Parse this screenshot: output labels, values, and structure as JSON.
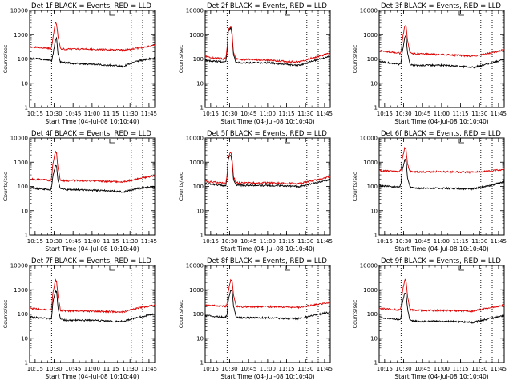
{
  "chart_data": [
    {
      "type": "line",
      "title": "Det 1f BLACK = Events, RED = LLD",
      "xlabel": "Start Time (04-Jul-08 10:10:40)",
      "ylabel": "Counts/sec",
      "xlim": [
        "10:10:40",
        "11:49:30"
      ],
      "ylim": [
        1,
        10000
      ],
      "log_y": true,
      "xticks": [
        "10:15",
        "10:30",
        "10:45",
        "11:00",
        "11:15",
        "11:30",
        "11:45"
      ],
      "yticks": [
        "1",
        "10",
        "100",
        "1000",
        "10000"
      ],
      "vlines": [
        "10:28",
        "11:31",
        "11:40"
      ],
      "series": [
        {
          "color": "#000000",
          "x": [
            "10:10:40",
            "10:18",
            "10:25",
            "10:27",
            "10:28",
            "10:29",
            "10:31",
            "10:32",
            "10:33",
            "10:35",
            "10:40",
            "10:45",
            "11:00",
            "11:15",
            "11:25",
            "11:35",
            "11:49"
          ],
          "values": [
            105,
            100,
            95,
            85,
            85,
            140,
            600,
            700,
            170,
            75,
            70,
            65,
            60,
            55,
            50,
            80,
            110
          ]
        },
        {
          "color": "#dd0000",
          "x": [
            "10:10:40",
            "10:18",
            "10:25",
            "10:27",
            "10:28",
            "10:29",
            "10:31",
            "10:32",
            "10:33",
            "10:35",
            "10:40",
            "10:45",
            "11:00",
            "11:15",
            "11:25",
            "11:35",
            "11:49"
          ],
          "values": [
            320,
            300,
            280,
            270,
            300,
            700,
            3200,
            2600,
            900,
            270,
            250,
            260,
            250,
            240,
            230,
            270,
            360
          ]
        }
      ]
    },
    {
      "type": "line",
      "title": "Det 2f BLACK = Events, RED = LLD",
      "xlabel": "Start Time (04-Jul-08 10:10:40)",
      "ylabel": "Counts/sec",
      "xlim": [
        "10:10:40",
        "11:49:30"
      ],
      "ylim": [
        1,
        10000
      ],
      "log_y": true,
      "xticks": [
        "10:15",
        "10:30",
        "10:45",
        "11:00",
        "11:15",
        "11:30",
        "11:45"
      ],
      "yticks": [
        "1",
        "10",
        "100",
        "1000",
        "10000"
      ],
      "vlines": [
        "10:28",
        "11:31",
        "11:40"
      ],
      "series": [
        {
          "color": "#000000",
          "x": [
            "10:10:40",
            "10:18",
            "10:25",
            "10:27",
            "10:28",
            "10:29",
            "10:31",
            "10:32",
            "10:33",
            "10:35",
            "10:40",
            "10:45",
            "11:00",
            "11:15",
            "11:25",
            "11:35",
            "11:49"
          ],
          "values": [
            90,
            80,
            75,
            80,
            200,
            1500,
            1900,
            900,
            150,
            75,
            70,
            70,
            70,
            60,
            55,
            80,
            130
          ]
        },
        {
          "color": "#dd0000",
          "x": [
            "10:10:40",
            "10:18",
            "10:25",
            "10:27",
            "10:28",
            "10:29",
            "10:31",
            "10:32",
            "10:33",
            "10:35",
            "10:40",
            "10:45",
            "11:00",
            "11:15",
            "11:25",
            "11:35",
            "11:49"
          ],
          "values": [
            130,
            110,
            100,
            110,
            300,
            1800,
            2200,
            1100,
            190,
            100,
            95,
            95,
            90,
            80,
            75,
            110,
            170
          ]
        }
      ]
    },
    {
      "type": "line",
      "title": "Det 3f BLACK = Events, RED = LLD",
      "xlabel": "Start Time (04-Jul-08 10:10:40)",
      "ylabel": "Counts/sec",
      "xlim": [
        "10:10:40",
        "11:49:30"
      ],
      "ylim": [
        1,
        10000
      ],
      "log_y": true,
      "xticks": [
        "10:15",
        "10:30",
        "10:45",
        "11:00",
        "11:15",
        "11:30",
        "11:45"
      ],
      "yticks": [
        "1",
        "10",
        "100",
        "1000",
        "10000"
      ],
      "vlines": [
        "10:28",
        "11:31",
        "11:40"
      ],
      "series": [
        {
          "color": "#000000",
          "x": [
            "10:10:40",
            "10:18",
            "10:25",
            "10:27",
            "10:28",
            "10:29",
            "10:31",
            "10:32",
            "10:33",
            "10:35",
            "10:40",
            "10:45",
            "11:00",
            "11:15",
            "11:25",
            "11:35",
            "11:49"
          ],
          "values": [
            80,
            70,
            65,
            60,
            70,
            200,
            800,
            850,
            200,
            60,
            55,
            55,
            55,
            50,
            45,
            60,
            95
          ]
        },
        {
          "color": "#dd0000",
          "x": [
            "10:10:40",
            "10:18",
            "10:25",
            "10:27",
            "10:28",
            "10:29",
            "10:31",
            "10:32",
            "10:33",
            "10:35",
            "10:40",
            "10:45",
            "11:00",
            "11:15",
            "11:25",
            "11:35",
            "11:49"
          ],
          "values": [
            220,
            200,
            180,
            170,
            200,
            600,
            2500,
            2200,
            600,
            180,
            160,
            160,
            150,
            140,
            130,
            160,
            240
          ]
        }
      ]
    },
    {
      "type": "line",
      "title": "Det 4f BLACK = Events, RED = LLD",
      "xlabel": "Start Time (04-Jul-08 10:10:40)",
      "ylabel": "Counts/sec",
      "xlim": [
        "10:10:40",
        "11:49:30"
      ],
      "ylim": [
        1,
        10000
      ],
      "log_y": true,
      "xticks": [
        "10:15",
        "10:30",
        "10:45",
        "11:00",
        "11:15",
        "11:30",
        "11:45"
      ],
      "yticks": [
        "1",
        "10",
        "100",
        "1000",
        "10000"
      ],
      "vlines": [
        "10:28",
        "11:31",
        "11:40"
      ],
      "series": [
        {
          "color": "#000000",
          "x": [
            "10:10:40",
            "10:18",
            "10:25",
            "10:27",
            "10:28",
            "10:29",
            "10:31",
            "10:32",
            "10:33",
            "10:35",
            "10:40",
            "10:45",
            "11:00",
            "11:15",
            "11:25",
            "11:35",
            "11:49"
          ],
          "values": [
            90,
            80,
            75,
            70,
            90,
            250,
            750,
            650,
            180,
            80,
            75,
            75,
            70,
            65,
            60,
            80,
            100
          ]
        },
        {
          "color": "#dd0000",
          "x": [
            "10:10:40",
            "10:18",
            "10:25",
            "10:27",
            "10:28",
            "10:29",
            "10:31",
            "10:32",
            "10:33",
            "10:35",
            "10:40",
            "10:45",
            "11:00",
            "11:15",
            "11:25",
            "11:35",
            "11:49"
          ],
          "values": [
            200,
            190,
            180,
            170,
            210,
            800,
            2800,
            2300,
            600,
            180,
            170,
            175,
            170,
            160,
            155,
            200,
            280
          ]
        }
      ]
    },
    {
      "type": "line",
      "title": "Det 5f BLACK = Events, RED = LLD",
      "xlabel": "Start Time (04-Jul-08 10:10:40)",
      "ylabel": "Counts/sec",
      "xlim": [
        "10:10:40",
        "11:49:30"
      ],
      "ylim": [
        1,
        10000
      ],
      "log_y": true,
      "xticks": [
        "10:15",
        "10:30",
        "10:45",
        "11:00",
        "11:15",
        "11:30",
        "11:45"
      ],
      "yticks": [
        "1",
        "10",
        "100",
        "1000",
        "10000"
      ],
      "vlines": [
        "10:28",
        "11:31",
        "11:40"
      ],
      "series": [
        {
          "color": "#000000",
          "x": [
            "10:10:40",
            "10:18",
            "10:25",
            "10:27",
            "10:28",
            "10:29",
            "10:31",
            "10:32",
            "10:33",
            "10:35",
            "10:40",
            "10:45",
            "11:00",
            "11:15",
            "11:25",
            "11:35",
            "11:49"
          ],
          "values": [
            130,
            120,
            110,
            110,
            250,
            1500,
            2000,
            1000,
            200,
            115,
            110,
            110,
            110,
            105,
            100,
            130,
            190
          ]
        },
        {
          "color": "#dd0000",
          "x": [
            "10:10:40",
            "10:18",
            "10:25",
            "10:27",
            "10:28",
            "10:29",
            "10:31",
            "10:32",
            "10:33",
            "10:35",
            "10:40",
            "10:45",
            "11:00",
            "11:15",
            "11:25",
            "11:35",
            "11:49"
          ],
          "values": [
            160,
            150,
            140,
            140,
            300,
            1800,
            2600,
            1300,
            260,
            145,
            140,
            140,
            140,
            135,
            130,
            170,
            250
          ]
        }
      ]
    },
    {
      "type": "line",
      "title": "Det 6f BLACK = Events, RED = LLD",
      "xlabel": "Start Time (04-Jul-08 10:10:40)",
      "ylabel": "Counts/sec",
      "xlim": [
        "10:10:40",
        "11:49:30"
      ],
      "ylim": [
        1,
        10000
      ],
      "log_y": true,
      "xticks": [
        "10:15",
        "10:30",
        "10:45",
        "11:00",
        "11:15",
        "11:30",
        "11:45"
      ],
      "yticks": [
        "1",
        "10",
        "100",
        "1000",
        "10000"
      ],
      "vlines": [
        "10:28",
        "11:31",
        "11:40"
      ],
      "series": [
        {
          "color": "#000000",
          "x": [
            "10:10:40",
            "10:18",
            "10:25",
            "10:27",
            "10:28",
            "10:29",
            "10:31",
            "10:32",
            "10:33",
            "10:35",
            "10:40",
            "10:45",
            "11:00",
            "11:15",
            "11:25",
            "11:35",
            "11:49"
          ],
          "values": [
            110,
            100,
            95,
            95,
            130,
            500,
            1300,
            1100,
            250,
            90,
            85,
            85,
            85,
            80,
            80,
            100,
            150
          ]
        },
        {
          "color": "#dd0000",
          "x": [
            "10:10:40",
            "10:18",
            "10:25",
            "10:27",
            "10:28",
            "10:29",
            "10:31",
            "10:32",
            "10:33",
            "10:35",
            "10:40",
            "10:45",
            "11:00",
            "11:15",
            "11:25",
            "11:35",
            "11:49"
          ],
          "values": [
            440,
            430,
            420,
            420,
            500,
            1500,
            4000,
            3200,
            900,
            410,
            400,
            400,
            400,
            390,
            380,
            420,
            500
          ]
        }
      ]
    },
    {
      "type": "line",
      "title": "Det 7f BLACK = Events, RED = LLD",
      "xlabel": "Start Time (04-Jul-08 10:10:40)",
      "ylabel": "Counts/sec",
      "xlim": [
        "10:10:40",
        "11:49:30"
      ],
      "ylim": [
        1,
        10000
      ],
      "log_y": true,
      "xticks": [
        "10:15",
        "10:30",
        "10:45",
        "11:00",
        "11:15",
        "11:30",
        "11:45"
      ],
      "yticks": [
        "1",
        "10",
        "100",
        "1000",
        "10000"
      ],
      "vlines": [
        "10:28",
        "11:31",
        "11:40"
      ],
      "series": [
        {
          "color": "#000000",
          "x": [
            "10:10:40",
            "10:18",
            "10:25",
            "10:27",
            "10:28",
            "10:29",
            "10:31",
            "10:32",
            "10:33",
            "10:35",
            "10:40",
            "10:45",
            "11:00",
            "11:15",
            "11:25",
            "11:35",
            "11:49"
          ],
          "values": [
            75,
            70,
            65,
            60,
            70,
            300,
            900,
            800,
            200,
            60,
            55,
            55,
            55,
            50,
            50,
            70,
            100
          ]
        },
        {
          "color": "#dd0000",
          "x": [
            "10:10:40",
            "10:18",
            "10:25",
            "10:27",
            "10:28",
            "10:29",
            "10:31",
            "10:32",
            "10:33",
            "10:35",
            "10:40",
            "10:45",
            "11:00",
            "11:15",
            "11:25",
            "11:35",
            "11:49"
          ],
          "values": [
            170,
            160,
            150,
            145,
            170,
            700,
            2600,
            2200,
            600,
            140,
            135,
            135,
            130,
            125,
            120,
            170,
            230
          ]
        }
      ]
    },
    {
      "type": "line",
      "title": "Det 8f BLACK = Events, RED = LLD",
      "xlabel": "Start Time (04-Jul-08 10:10:40)",
      "ylabel": "Counts/sec",
      "xlim": [
        "10:10:40",
        "11:49:30"
      ],
      "ylim": [
        1,
        10000
      ],
      "log_y": true,
      "xticks": [
        "10:15",
        "10:30",
        "10:45",
        "11:00",
        "11:15",
        "11:30",
        "11:45"
      ],
      "yticks": [
        "1",
        "10",
        "100",
        "1000",
        "10000"
      ],
      "vlines": [
        "10:28",
        "11:31",
        "11:40"
      ],
      "series": [
        {
          "color": "#000000",
          "x": [
            "10:10:40",
            "10:18",
            "10:25",
            "10:27",
            "10:28",
            "10:29",
            "10:31",
            "10:32",
            "10:33",
            "10:35",
            "10:40",
            "10:45",
            "11:00",
            "11:15",
            "11:25",
            "11:35",
            "11:49"
          ],
          "values": [
            85,
            80,
            75,
            75,
            100,
            400,
            1000,
            900,
            220,
            75,
            70,
            70,
            70,
            65,
            65,
            85,
            120
          ]
        },
        {
          "color": "#dd0000",
          "x": [
            "10:10:40",
            "10:18",
            "10:25",
            "10:27",
            "10:28",
            "10:29",
            "10:31",
            "10:32",
            "10:33",
            "10:35",
            "10:40",
            "10:45",
            "11:00",
            "11:15",
            "11:25",
            "11:35",
            "11:49"
          ],
          "values": [
            230,
            220,
            210,
            210,
            260,
            900,
            2700,
            2300,
            650,
            210,
            200,
            200,
            200,
            195,
            190,
            230,
            300
          ]
        }
      ]
    },
    {
      "type": "line",
      "title": "Det 9f BLACK = Events, RED = LLD",
      "xlabel": "Start Time (04-Jul-08 10:10:40)",
      "ylabel": "Counts/sec",
      "xlim": [
        "10:10:40",
        "11:49:30"
      ],
      "ylim": [
        1,
        10000
      ],
      "log_y": true,
      "xticks": [
        "10:15",
        "10:30",
        "10:45",
        "11:00",
        "11:15",
        "11:30",
        "11:45"
      ],
      "yticks": [
        "1",
        "10",
        "100",
        "1000",
        "10000"
      ],
      "vlines": [
        "10:28",
        "11:31",
        "11:40"
      ],
      "series": [
        {
          "color": "#000000",
          "x": [
            "10:10:40",
            "10:18",
            "10:25",
            "10:27",
            "10:28",
            "10:29",
            "10:31",
            "10:32",
            "10:33",
            "10:35",
            "10:40",
            "10:45",
            "11:00",
            "11:15",
            "11:25",
            "11:35",
            "11:49"
          ],
          "values": [
            70,
            65,
            60,
            60,
            70,
            300,
            800,
            700,
            180,
            55,
            50,
            50,
            50,
            48,
            45,
            60,
            85
          ]
        },
        {
          "color": "#dd0000",
          "x": [
            "10:10:40",
            "10:18",
            "10:25",
            "10:27",
            "10:28",
            "10:29",
            "10:31",
            "10:32",
            "10:33",
            "10:35",
            "10:40",
            "10:45",
            "11:00",
            "11:15",
            "11:25",
            "11:35",
            "11:49"
          ],
          "values": [
            170,
            160,
            150,
            150,
            180,
            800,
            2700,
            2300,
            600,
            150,
            140,
            140,
            140,
            135,
            130,
            170,
            230
          ]
        }
      ]
    }
  ]
}
